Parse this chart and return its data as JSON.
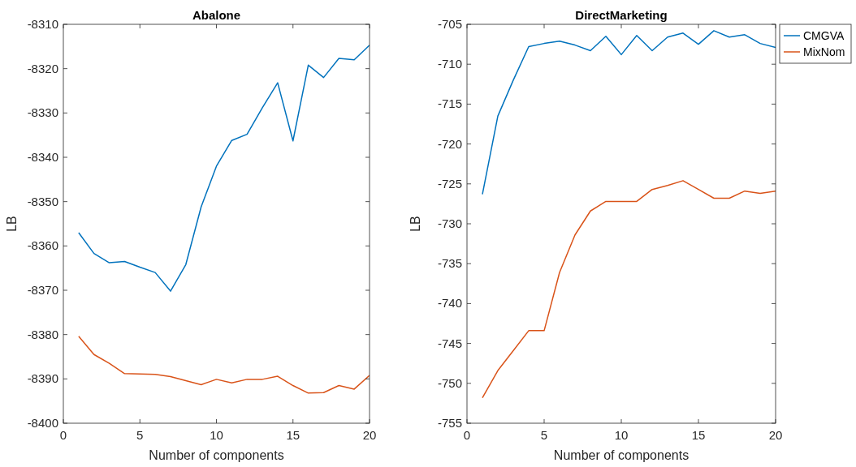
{
  "chart_data": [
    {
      "type": "line",
      "title": "Abalone",
      "xlabel": "Number of components",
      "ylabel": "LB",
      "x": [
        1,
        2,
        3,
        4,
        5,
        6,
        7,
        8,
        9,
        10,
        11,
        12,
        13,
        14,
        15,
        16,
        17,
        18,
        19,
        20
      ],
      "xlim": [
        0,
        20
      ],
      "xticks": [
        0,
        5,
        10,
        15,
        20
      ],
      "ylim": [
        -8400,
        -8310
      ],
      "yticks": [
        -8400,
        -8390,
        -8380,
        -8370,
        -8360,
        -8350,
        -8340,
        -8330,
        -8320,
        -8310
      ],
      "grid": false,
      "legend": false,
      "series": [
        {
          "color": "#0072bd",
          "values": [
            -8357,
            -8361.7,
            -8363.8,
            -8363.5,
            -8364.8,
            -8366,
            -8370.2,
            -8364.2,
            -8351.2,
            -8342,
            -8336.2,
            -8334.8,
            -8328.8,
            -8323.2,
            -8336.3,
            -8319.2,
            -8322,
            -8317.7,
            -8318,
            -8314.7
          ]
        },
        {
          "color": "#d95319",
          "values": [
            -8380.4,
            -8384.5,
            -8386.5,
            -8388.8,
            -8388.9,
            -8389,
            -8389.5,
            -8390.4,
            -8391.3,
            -8390.1,
            -8390.9,
            -8390.1,
            -8390.1,
            -8389.4,
            -8391.5,
            -8393.2,
            -8393.1,
            -8391.5,
            -8392.3,
            -8389.2
          ]
        }
      ]
    },
    {
      "type": "line",
      "title": "DirectMarketing",
      "xlabel": "Number of components",
      "ylabel": "LB",
      "x": [
        1,
        2,
        3,
        4,
        5,
        6,
        7,
        8,
        9,
        10,
        11,
        12,
        13,
        14,
        15,
        16,
        17,
        18,
        19,
        20
      ],
      "xlim": [
        0,
        20
      ],
      "xticks": [
        0,
        5,
        10,
        15,
        20
      ],
      "ylim": [
        -755,
        -705
      ],
      "yticks": [
        -755,
        -750,
        -745,
        -740,
        -735,
        -730,
        -725,
        -720,
        -715,
        -710,
        -705
      ],
      "grid": false,
      "legend": "top right",
      "series": [
        {
          "name": "CMGVA",
          "color": "#0072bd",
          "values": [
            -726.3,
            -716.5,
            -712,
            -707.8,
            -707.4,
            -707.1,
            -707.6,
            -708.3,
            -706.5,
            -708.8,
            -706.4,
            -708.3,
            -706.6,
            -706.1,
            -707.5,
            -705.8,
            -706.6,
            -706.3,
            -707.4,
            -707.9
          ]
        },
        {
          "name": "MixNom",
          "color": "#d95319",
          "values": [
            -751.8,
            -748.4,
            -745.9,
            -743.4,
            -743.4,
            -736.1,
            -731.4,
            -728.4,
            -727.2,
            -727.2,
            -727.2,
            -725.7,
            -725.2,
            -724.6,
            -725.7,
            -726.8,
            -726.8,
            -725.9,
            -726.2,
            -725.9
          ]
        }
      ]
    }
  ]
}
